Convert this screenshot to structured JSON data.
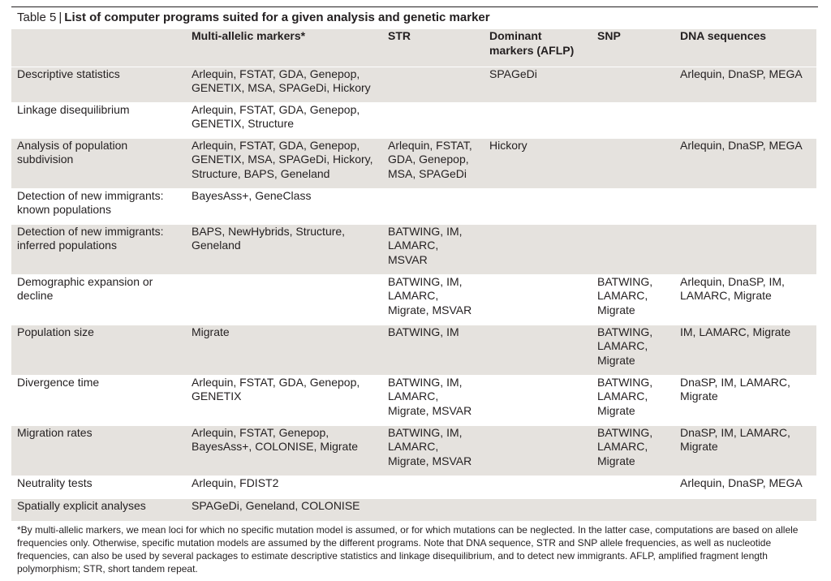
{
  "table": {
    "number_label": "Table 5",
    "separator": "|",
    "title": "List of computer programs suited for a given analysis and genetic marker",
    "headers": [
      "",
      "Multi-allelic markers*",
      "STR",
      "Dominant markers (AFLP)",
      "SNP",
      "DNA sequences"
    ],
    "rows": [
      {
        "analysis": "Descriptive statistics",
        "multi": "Arlequin, FSTAT, GDA, Genepop, GENETIX, MSA, SPAGeDi, Hickory",
        "str": "",
        "dominant": "SPAGeDi",
        "snp": "",
        "dna": "Arlequin, DnaSP, MEGA"
      },
      {
        "analysis": "Linkage disequilibrium",
        "multi": "Arlequin, FSTAT, GDA, Genepop, GENETIX, Structure",
        "str": "",
        "dominant": "",
        "snp": "",
        "dna": ""
      },
      {
        "analysis": "Analysis of population subdivision",
        "multi": "Arlequin, FSTAT, GDA, Genepop, GENETIX, MSA, SPAGeDi, Hickory, Structure, BAPS, Geneland",
        "str": "Arlequin, FSTAT, GDA, Genepop, MSA, SPAGeDi",
        "dominant": "Hickory",
        "snp": "",
        "dna": "Arlequin, DnaSP, MEGA"
      },
      {
        "analysis": "Detection of new immigrants: known populations",
        "multi": "BayesAss+, GeneClass",
        "str": "",
        "dominant": "",
        "snp": "",
        "dna": ""
      },
      {
        "analysis": "Detection of new immigrants: inferred populations",
        "multi": "BAPS, NewHybrids, Structure, Geneland",
        "str": "BATWING, IM, LAMARC, MSVAR",
        "dominant": "",
        "snp": "",
        "dna": ""
      },
      {
        "analysis": "Demographic expansion or decline",
        "multi": "",
        "str": "BATWING, IM, LAMARC, Migrate, MSVAR",
        "dominant": "",
        "snp": "BATWING, LAMARC, Migrate",
        "dna": "Arlequin, DnaSP, IM, LAMARC, Migrate"
      },
      {
        "analysis": "Population size",
        "multi": "Migrate",
        "str": "BATWING, IM",
        "dominant": "",
        "snp": "BATWING, LAMARC, Migrate",
        "dna": "IM, LAMARC, Migrate"
      },
      {
        "analysis": "Divergence time",
        "multi": "Arlequin, FSTAT, GDA, Genepop, GENETIX",
        "str": "BATWING, IM, LAMARC, Migrate, MSVAR",
        "dominant": "",
        "snp": "BATWING, LAMARC, Migrate",
        "dna": "DnaSP, IM, LAMARC, Migrate"
      },
      {
        "analysis": "Migration rates",
        "multi": "Arlequin, FSTAT, Genepop, BayesAss+, COLONISE, Migrate",
        "str": "BATWING, IM, LAMARC, Migrate, MSVAR",
        "dominant": "",
        "snp": "BATWING, LAMARC, Migrate",
        "dna": "DnaSP, IM, LAMARC, Migrate"
      },
      {
        "analysis": "Neutrality tests",
        "multi": "Arlequin, FDIST2",
        "str": "",
        "dominant": "",
        "snp": "",
        "dna": "Arlequin, DnaSP, MEGA"
      },
      {
        "analysis": "Spatially explicit analyses",
        "multi": "SPAGeDi, Geneland, COLONISE",
        "str": "",
        "dominant": "",
        "snp": "",
        "dna": ""
      }
    ],
    "footnote": "*By multi-allelic markers, we mean loci for which no specific mutation model is assumed, or for which mutations can be neglected. In the latter case, computations are based on allele frequencies only. Otherwise, specific mutation models are assumed by the different programs. Note that DNA sequence, STR and SNP allele frequencies, as well as nucleotide frequencies, can also be used by several packages to estimate descriptive statistics and linkage disequilibrium, and to detect new immigrants. AFLP, amplified fragment length polymorphism; STR, short tandem repeat."
  },
  "colors": {
    "row_tint": "#e5e2de",
    "text": "#231f20",
    "rule": "#231f20"
  }
}
